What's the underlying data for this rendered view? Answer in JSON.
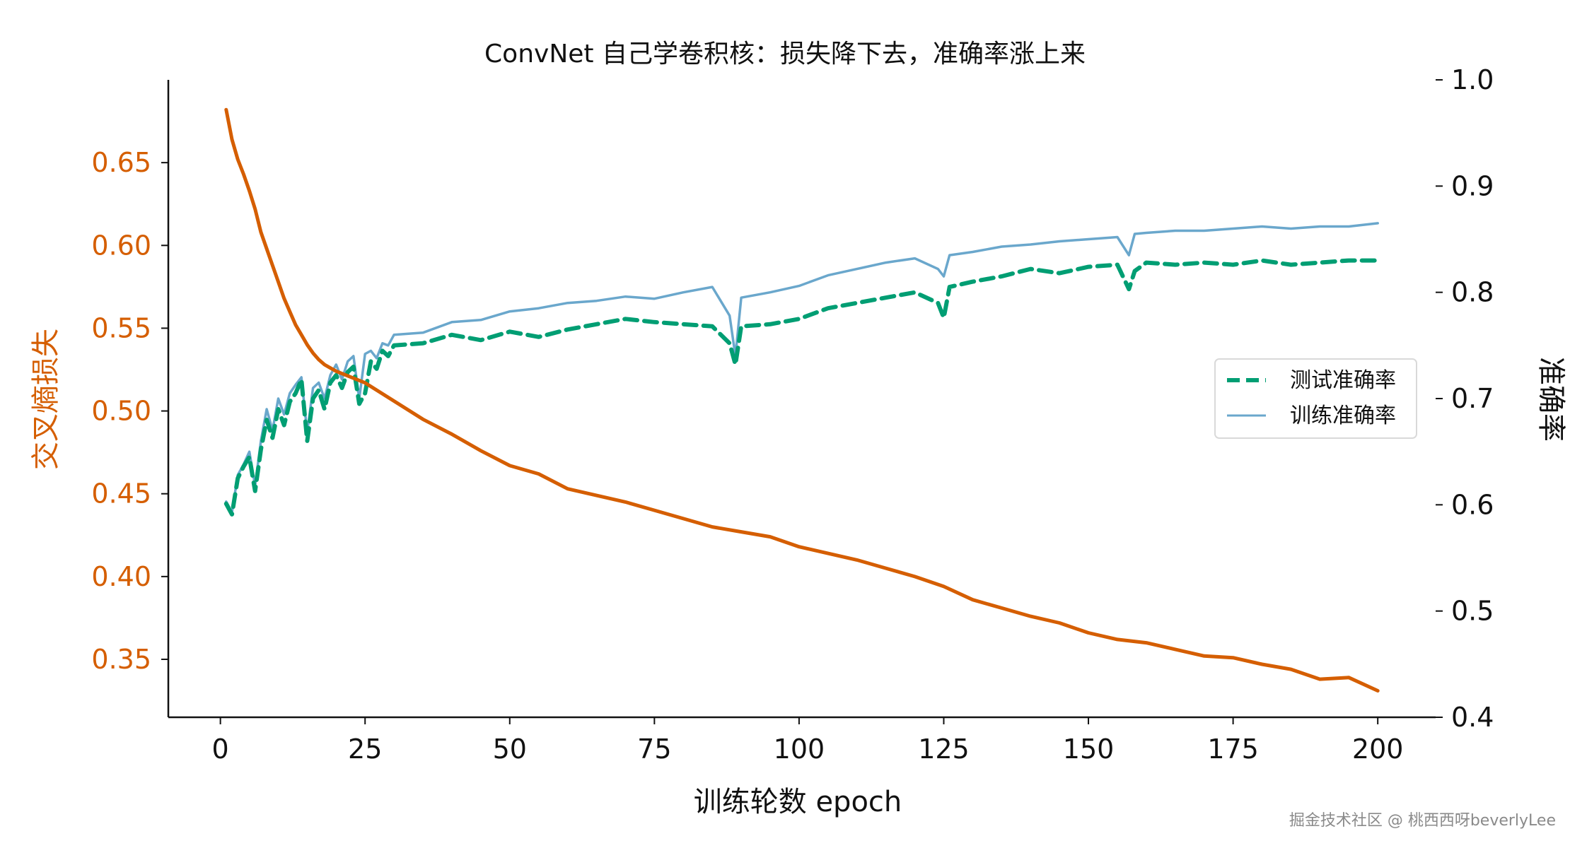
{
  "chart_data": {
    "type": "line",
    "title": "ConvNet 自己学卷积核：损失降下去，准确率涨上来",
    "xlabel": "训练轮数 epoch",
    "ylabel_left": "交叉熵损失",
    "ylabel_right": "准确率",
    "xlim": [
      -9,
      210
    ],
    "ylim_left": [
      0.315,
      0.7
    ],
    "ylim_right": [
      0.4,
      1.0
    ],
    "xticks": [
      "0",
      "25",
      "50",
      "75",
      "100",
      "125",
      "150",
      "175",
      "200"
    ],
    "yticks_left": [
      "0.35",
      "0.40",
      "0.45",
      "0.50",
      "0.55",
      "0.60",
      "0.65"
    ],
    "yticks_right": [
      "0.4",
      "0.5",
      "0.6",
      "0.7",
      "0.8",
      "0.9",
      "1.0"
    ],
    "grid": false,
    "legend_position": "center-right",
    "colors": {
      "loss": "#d55e00",
      "test_accuracy": "#009e73",
      "train_accuracy": "#6aa7cc",
      "left_axis_text": "#d55e00",
      "right_axis_text": "#111111"
    },
    "series": [
      {
        "name": "交叉熵损失",
        "axis": "left",
        "style": "solid",
        "x": [
          1,
          2,
          3,
          4,
          5,
          6,
          7,
          8,
          9,
          10,
          11,
          12,
          13,
          14,
          15,
          16,
          17,
          18,
          19,
          20,
          25,
          30,
          35,
          40,
          45,
          50,
          55,
          60,
          65,
          70,
          75,
          80,
          85,
          90,
          95,
          100,
          105,
          110,
          115,
          120,
          125,
          130,
          135,
          140,
          145,
          150,
          155,
          160,
          165,
          170,
          175,
          180,
          185,
          190,
          195,
          200
        ],
        "y": [
          0.682,
          0.664,
          0.652,
          0.643,
          0.633,
          0.622,
          0.608,
          0.598,
          0.588,
          0.578,
          0.568,
          0.56,
          0.552,
          0.546,
          0.54,
          0.535,
          0.531,
          0.528,
          0.526,
          0.524,
          0.517,
          0.506,
          0.495,
          0.486,
          0.476,
          0.467,
          0.462,
          0.453,
          0.449,
          0.445,
          0.44,
          0.435,
          0.43,
          0.427,
          0.424,
          0.418,
          0.414,
          0.41,
          0.405,
          0.4,
          0.394,
          0.386,
          0.381,
          0.376,
          0.372,
          0.366,
          0.362,
          0.36,
          0.356,
          0.352,
          0.351,
          0.347,
          0.344,
          0.338,
          0.339,
          0.331
        ]
      },
      {
        "name": "测试准确率",
        "axis": "right",
        "style": "dashed",
        "x": [
          1,
          2,
          3,
          4,
          5,
          6,
          7,
          8,
          9,
          10,
          11,
          12,
          13,
          14,
          15,
          16,
          17,
          18,
          19,
          20,
          21,
          22,
          23,
          24,
          25,
          26,
          27,
          28,
          29,
          30,
          35,
          40,
          45,
          50,
          55,
          60,
          65,
          70,
          75,
          80,
          85,
          88,
          89,
          90,
          95,
          100,
          105,
          110,
          115,
          120,
          124,
          125,
          126,
          130,
          135,
          140,
          145,
          150,
          155,
          157,
          158,
          160,
          165,
          170,
          175,
          180,
          185,
          190,
          195,
          200
        ],
        "y": [
          0.601,
          0.591,
          0.625,
          0.636,
          0.645,
          0.613,
          0.652,
          0.68,
          0.663,
          0.69,
          0.675,
          0.697,
          0.705,
          0.718,
          0.66,
          0.7,
          0.708,
          0.69,
          0.715,
          0.722,
          0.71,
          0.725,
          0.73,
          0.695,
          0.705,
          0.735,
          0.728,
          0.745,
          0.74,
          0.75,
          0.752,
          0.76,
          0.755,
          0.763,
          0.758,
          0.765,
          0.77,
          0.775,
          0.772,
          0.77,
          0.768,
          0.752,
          0.732,
          0.768,
          0.77,
          0.775,
          0.785,
          0.79,
          0.795,
          0.8,
          0.79,
          0.776,
          0.805,
          0.81,
          0.815,
          0.822,
          0.818,
          0.824,
          0.826,
          0.803,
          0.82,
          0.828,
          0.826,
          0.828,
          0.826,
          0.83,
          0.826,
          0.828,
          0.83,
          0.83
        ]
      },
      {
        "name": "训练准确率",
        "axis": "right",
        "style": "solid",
        "x": [
          1,
          2,
          3,
          4,
          5,
          6,
          7,
          8,
          9,
          10,
          11,
          12,
          13,
          14,
          15,
          16,
          17,
          18,
          19,
          20,
          21,
          22,
          23,
          24,
          25,
          26,
          27,
          28,
          29,
          30,
          35,
          40,
          45,
          50,
          55,
          60,
          65,
          70,
          75,
          80,
          85,
          88,
          89,
          90,
          95,
          100,
          105,
          110,
          115,
          120,
          124,
          125,
          126,
          130,
          135,
          140,
          145,
          150,
          155,
          157,
          158,
          160,
          165,
          170,
          175,
          180,
          185,
          190,
          195,
          200
        ],
        "y": [
          0.603,
          0.593,
          0.628,
          0.638,
          0.65,
          0.618,
          0.66,
          0.69,
          0.67,
          0.7,
          0.685,
          0.705,
          0.713,
          0.72,
          0.668,
          0.71,
          0.715,
          0.7,
          0.722,
          0.732,
          0.718,
          0.735,
          0.74,
          0.7,
          0.742,
          0.745,
          0.738,
          0.752,
          0.75,
          0.76,
          0.762,
          0.772,
          0.774,
          0.782,
          0.785,
          0.79,
          0.792,
          0.796,
          0.794,
          0.8,
          0.805,
          0.778,
          0.74,
          0.795,
          0.8,
          0.806,
          0.816,
          0.822,
          0.828,
          0.832,
          0.822,
          0.815,
          0.835,
          0.838,
          0.843,
          0.845,
          0.848,
          0.85,
          0.852,
          0.835,
          0.855,
          0.856,
          0.858,
          0.858,
          0.86,
          0.862,
          0.86,
          0.862,
          0.862,
          0.865
        ]
      }
    ],
    "watermark": "掘金技术社区 @ 桃西西呀beverlyLee"
  }
}
